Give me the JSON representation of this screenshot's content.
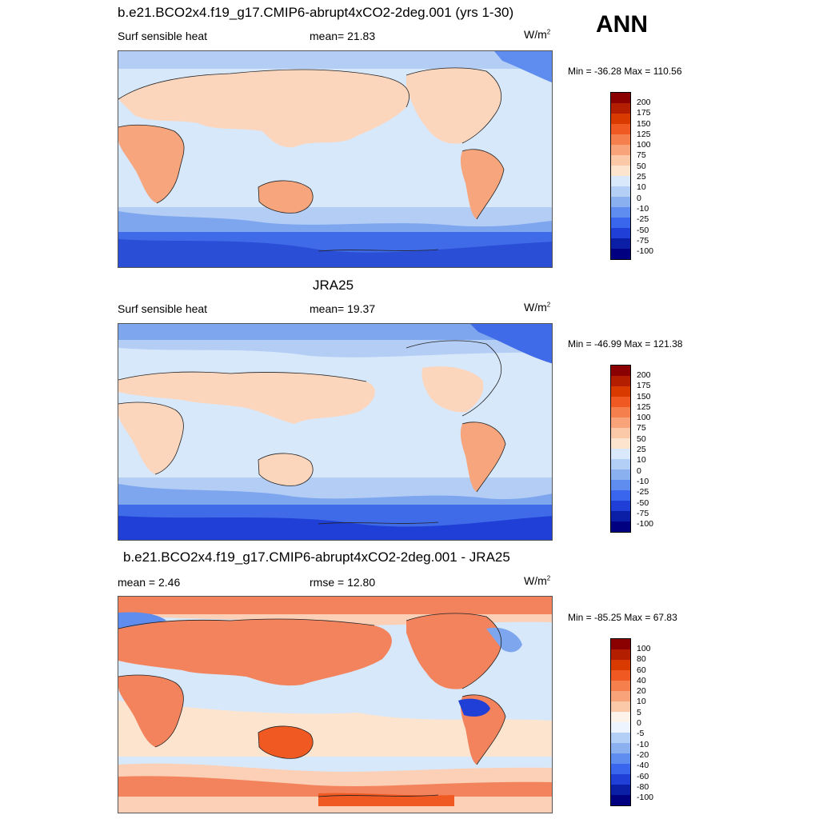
{
  "season": "ANN",
  "panels": [
    {
      "title": "b.e21.BCO2x4.f19_g17.CMIP6-abrupt4xCO2-2deg.001 (yrs 1-30)",
      "left_label": "Surf sensible heat",
      "center_label": "mean=  21.83",
      "units": "W/m",
      "units_sup": "2",
      "minmax": "Min = -36.28 Max = 110.56",
      "colorbar": [
        "200",
        "175",
        "150",
        "125",
        "100",
        "75",
        "50",
        "25",
        "10",
        "0",
        "-10",
        "-25",
        "-50",
        "-75",
        "-100"
      ]
    },
    {
      "title": "JRA25",
      "left_label": "Surf sensible heat",
      "center_label": "mean=  19.37",
      "units": "W/m",
      "units_sup": "2",
      "minmax": "Min = -46.99 Max = 121.38",
      "colorbar": [
        "200",
        "175",
        "150",
        "125",
        "100",
        "75",
        "50",
        "25",
        "10",
        "0",
        "-10",
        "-25",
        "-50",
        "-75",
        "-100"
      ]
    },
    {
      "title": "b.e21.BCO2x4.f19_g17.CMIP6-abrupt4xCO2-2deg.001 - JRA25",
      "left_label": "mean =   2.46",
      "center_label": "rmse =  12.80",
      "units": "W/m",
      "units_sup": "2",
      "minmax": "Min = -85.25 Max =  67.83",
      "colorbar": [
        "100",
        "80",
        "60",
        "40",
        "20",
        "10",
        "5",
        "0",
        "-5",
        "-10",
        "-20",
        "-40",
        "-60",
        "-80",
        "-100"
      ]
    }
  ],
  "colors": {
    "colorbar": [
      "#8b0000",
      "#b31e00",
      "#d93a00",
      "#f05a22",
      "#f57f4d",
      "#f9a37a",
      "#fcc9a8",
      "#fde4cf",
      "#d9e9fb",
      "#b4cff5",
      "#8ab0ef",
      "#5f8def",
      "#3a66ee",
      "#1f3fd6",
      "#0a1fa6",
      "#000080"
    ],
    "ocean_light": "#d8e8fb",
    "ocean_mid": "#b3cdf5",
    "ocean_blue": "#7ea6ee",
    "ocean_deep": "#3f6ae8",
    "land_warm": "#fbd6bd",
    "land_hot": "#f6a57c",
    "diff_pos": "#f2835d",
    "diff_pos_light": "#fbd0b6"
  }
}
